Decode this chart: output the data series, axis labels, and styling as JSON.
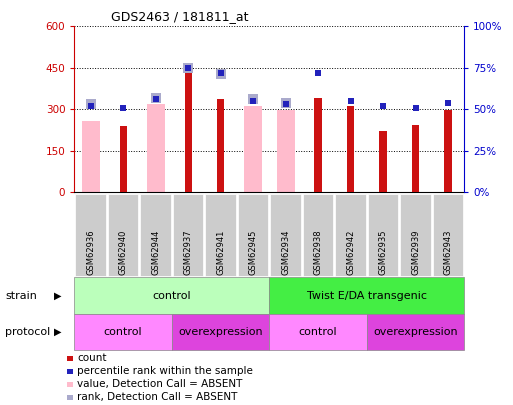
{
  "title": "GDS2463 / 181811_at",
  "samples": [
    "GSM62936",
    "GSM62940",
    "GSM62944",
    "GSM62937",
    "GSM62941",
    "GSM62945",
    "GSM62934",
    "GSM62938",
    "GSM62942",
    "GSM62935",
    "GSM62939",
    "GSM62943"
  ],
  "count_values": [
    null,
    240,
    null,
    468,
    338,
    null,
    null,
    340,
    313,
    222,
    242,
    297
  ],
  "value_absent": [
    257,
    null,
    318,
    null,
    null,
    313,
    298,
    null,
    null,
    null,
    null,
    null
  ],
  "percentile_rank": [
    52,
    51,
    56,
    75,
    72,
    55,
    53,
    72,
    55,
    52,
    51,
    54
  ],
  "rank_absent": [
    53,
    null,
    57,
    75,
    71,
    56,
    54,
    null,
    null,
    null,
    null,
    null
  ],
  "ylim_left": [
    0,
    600
  ],
  "ylim_right": [
    0,
    100
  ],
  "yticks_left": [
    0,
    150,
    300,
    450,
    600
  ],
  "yticks_right": [
    0,
    25,
    50,
    75,
    100
  ],
  "ytick_labels_left": [
    "0",
    "150",
    "300",
    "450",
    "600"
  ],
  "ytick_labels_right": [
    "0%",
    "25%",
    "50%",
    "75%",
    "100%"
  ],
  "count_color": "#cc1111",
  "value_absent_color": "#ffbbcc",
  "percentile_color": "#2222bb",
  "rank_absent_color": "#aaaacc",
  "strain_control_color": "#bbffbb",
  "strain_transgenic_color": "#44ee44",
  "protocol_control_color": "#ff88ff",
  "protocol_overexpression_color": "#dd44dd",
  "bg_color": "#ffffff",
  "left_axis_color": "#cc0000",
  "right_axis_color": "#0000cc",
  "tick_label_bg": "#cccccc",
  "legend_items": [
    {
      "color": "#cc1111",
      "label": "count"
    },
    {
      "color": "#2222bb",
      "label": "percentile rank within the sample"
    },
    {
      "color": "#ffbbcc",
      "label": "value, Detection Call = ABSENT"
    },
    {
      "color": "#aaaacc",
      "label": "rank, Detection Call = ABSENT"
    }
  ]
}
